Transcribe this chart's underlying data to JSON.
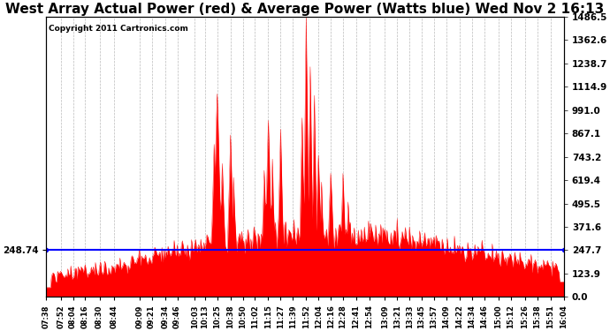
{
  "title": "West Array Actual Power (red) & Average Power (Watts blue) Wed Nov 2 16:13",
  "copyright": "Copyright 2011 Cartronics.com",
  "average_power": 248.74,
  "ylim": [
    0,
    1486.5
  ],
  "yticks": [
    0.0,
    123.9,
    247.7,
    371.6,
    495.5,
    619.4,
    743.2,
    867.1,
    991.0,
    1114.9,
    1238.7,
    1362.6,
    1486.5
  ],
  "ytick_labels": [
    "0.0",
    "123.9",
    "247.7",
    "371.6",
    "495.5",
    "619.4",
    "743.2",
    "867.1",
    "991.0",
    "1114.9",
    "1238.7",
    "1362.6",
    "1486.5"
  ],
  "xtick_labels": [
    "07:38",
    "07:52",
    "08:04",
    "08:16",
    "08:30",
    "08:44",
    "09:09",
    "09:21",
    "09:34",
    "09:46",
    "10:03",
    "10:13",
    "10:25",
    "10:38",
    "10:50",
    "11:02",
    "11:15",
    "11:27",
    "11:39",
    "11:52",
    "12:04",
    "12:16",
    "12:28",
    "12:41",
    "12:54",
    "13:09",
    "13:21",
    "13:33",
    "13:45",
    "13:57",
    "14:09",
    "14:22",
    "14:34",
    "14:46",
    "15:00",
    "15:12",
    "15:26",
    "15:38",
    "15:51",
    "16:04"
  ],
  "bar_color": "#FF0000",
  "line_color": "#0000FF",
  "background_color": "#FFFFFF",
  "grid_color": "#AAAAAA",
  "title_fontsize": 11,
  "avg_label": "248.74"
}
